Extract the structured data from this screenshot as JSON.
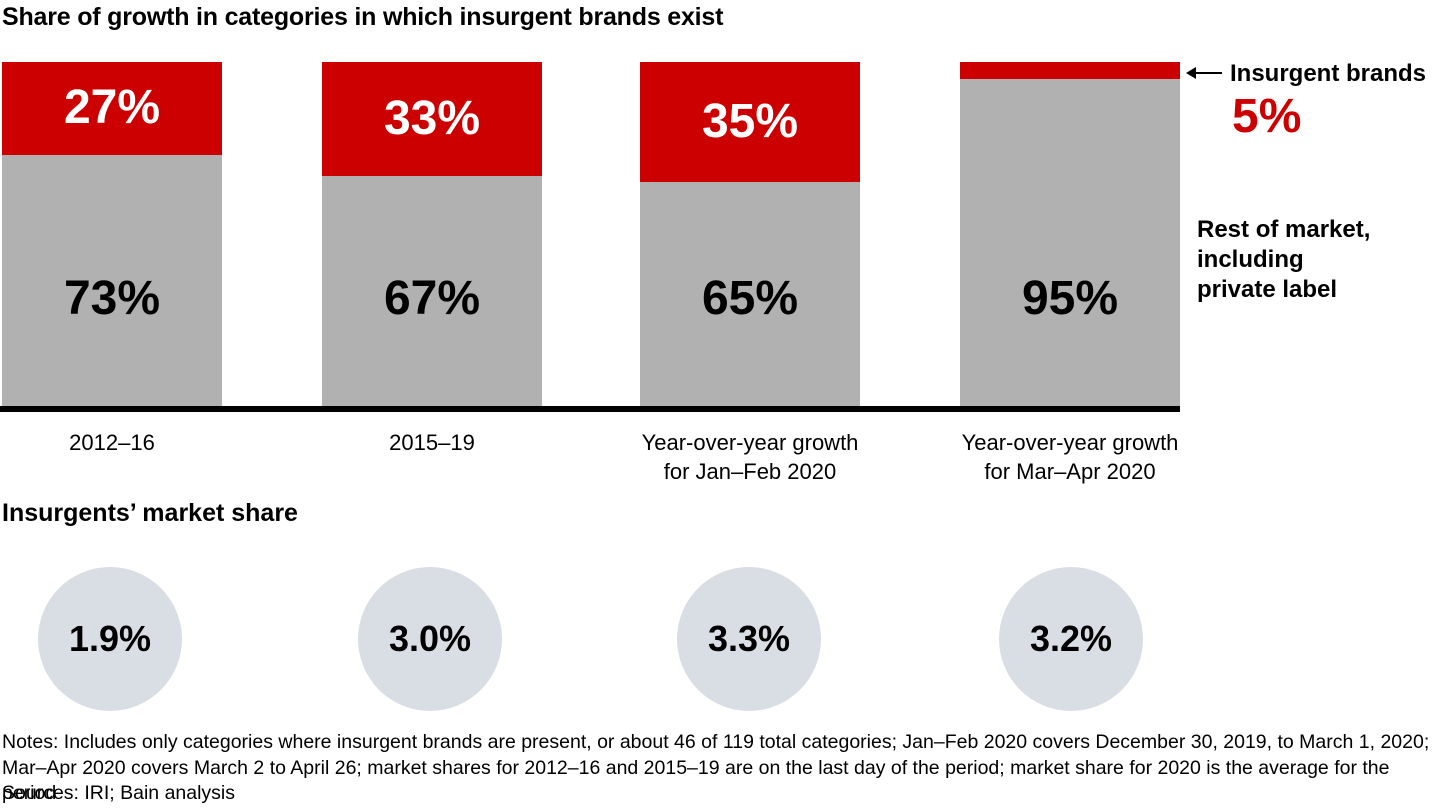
{
  "header": {
    "title": "Share of growth in categories in which insurgent brands exist"
  },
  "colors": {
    "insurgent_red": "#cc0000",
    "rest_gray": "#b1b1b1",
    "circle_fill": "#d8dee4",
    "axis_black": "#000000"
  },
  "chart_data": {
    "type": "bar",
    "stacking": "percent",
    "title": "Share of growth in categories in which insurgent brands exist",
    "categories": [
      "2012–16",
      "2015–19",
      "Year-over-year growth\nfor Jan–Feb 2020",
      "Year-over-year growth\nfor Mar–Apr 2020"
    ],
    "series": [
      {
        "name": "Insurgent brands",
        "color": "#cc0000",
        "values": [
          27,
          33,
          35,
          5
        ]
      },
      {
        "name": "Rest of market, including private label",
        "color": "#b1b1b1",
        "values": [
          73,
          67,
          65,
          95
        ]
      }
    ],
    "value_labels": {
      "insurgent": [
        "27%",
        "33%",
        "35%",
        "5%"
      ],
      "rest": [
        "73%",
        "67%",
        "65%",
        "95%"
      ]
    },
    "ylim": [
      0,
      100
    ],
    "grid": false,
    "legend_position": "right-of-last-bar"
  },
  "annotations": {
    "insurgent_legend": "Insurgent brands",
    "insurgent_outside_value": "5%",
    "rest_legend": "Rest of market,\nincluding\nprivate label",
    "arrow_icon": "left-arrow"
  },
  "market_share": {
    "title": "Insurgents’ market share",
    "values": [
      "1.9%",
      "3.0%",
      "3.3%",
      "3.2%"
    ]
  },
  "footer": {
    "notes": "Notes: Includes only categories where insurgent brands are present, or about 46 of 119 total categories; Jan–Feb 2020 covers December 30, 2019, to March 1, 2020; Mar–Apr 2020 covers March 2 to April 26; market shares for 2012–16 and 2015–19 are on the last day of the period; market share for 2020 is the average for the period",
    "sources": "Sources: IRI; Bain analysis"
  }
}
